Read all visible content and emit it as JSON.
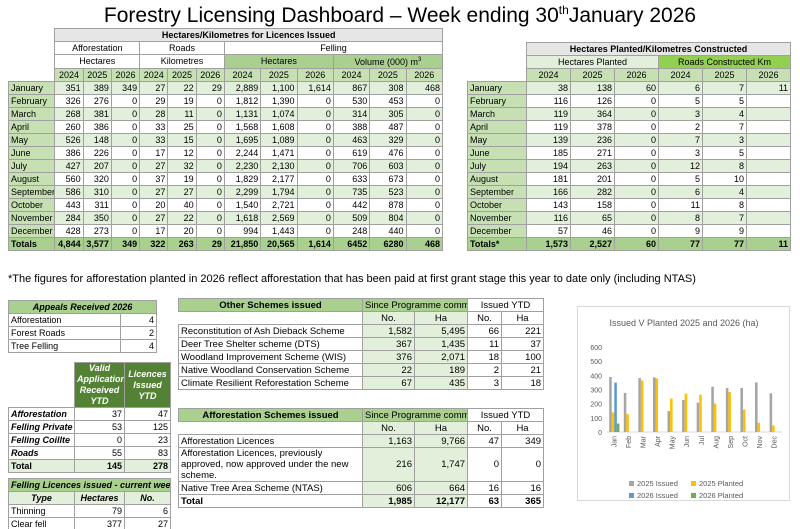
{
  "header": {
    "title": "Forestry Licensing Dashboard – Week ending 30",
    "title_sup": "th",
    "title_tail": "January 2026"
  },
  "licences": {
    "title": "Hectares/Kilometres for Licences Issued",
    "afforestation": "Afforestation",
    "roads": "Roads",
    "felling": "Felling",
    "hectares": "Hectares",
    "kilometres": "Kilometres",
    "volume": "Volume (000) m",
    "volume_sup": "3",
    "years": [
      "2024",
      "2025",
      "2026"
    ],
    "rows": [
      [
        "January",
        "351",
        "389",
        "349",
        "27",
        "22",
        "29",
        "2,889",
        "1,100",
        "1,614",
        "867",
        "308",
        "468"
      ],
      [
        "February",
        "326",
        "276",
        "0",
        "29",
        "19",
        "0",
        "1,812",
        "1,390",
        "0",
        "530",
        "453",
        "0"
      ],
      [
        "March",
        "268",
        "381",
        "0",
        "28",
        "11",
        "0",
        "1,131",
        "1,074",
        "0",
        "314",
        "305",
        "0"
      ],
      [
        "April",
        "260",
        "386",
        "0",
        "33",
        "25",
        "0",
        "1,568",
        "1,608",
        "0",
        "388",
        "487",
        "0"
      ],
      [
        "May",
        "526",
        "148",
        "0",
        "33",
        "15",
        "0",
        "1,695",
        "1,089",
        "0",
        "463",
        "329",
        "0"
      ],
      [
        "June",
        "386",
        "226",
        "0",
        "17",
        "12",
        "0",
        "2,244",
        "1,471",
        "0",
        "619",
        "476",
        "0"
      ],
      [
        "July",
        "427",
        "207",
        "0",
        "27",
        "32",
        "0",
        "2,230",
        "2,130",
        "0",
        "706",
        "603",
        "0"
      ],
      [
        "August",
        "560",
        "320",
        "0",
        "37",
        "19",
        "0",
        "1,829",
        "2,177",
        "0",
        "633",
        "673",
        "0"
      ],
      [
        "September",
        "586",
        "310",
        "0",
        "27",
        "27",
        "0",
        "2,299",
        "1,794",
        "0",
        "735",
        "523",
        "0"
      ],
      [
        "October",
        "443",
        "311",
        "0",
        "20",
        "40",
        "0",
        "1,540",
        "2,721",
        "0",
        "442",
        "878",
        "0"
      ],
      [
        "November",
        "284",
        "350",
        "0",
        "27",
        "22",
        "0",
        "1,618",
        "2,569",
        "0",
        "509",
        "804",
        "0"
      ],
      [
        "December",
        "428",
        "273",
        "0",
        "17",
        "20",
        "0",
        "994",
        "1,443",
        "0",
        "248",
        "440",
        "0"
      ],
      [
        "Totals",
        "4,844",
        "3,577",
        "349",
        "322",
        "263",
        "29",
        "21,850",
        "20,565",
        "1,614",
        "6452",
        "6280",
        "468"
      ]
    ]
  },
  "planted": {
    "title": "Hectares Planted/Kilometres Constructed",
    "hectares_planted": "Hectares Planted",
    "roads_constructed": "Roads Constructed Km",
    "years": [
      "2024",
      "2025",
      "2026"
    ],
    "rows": [
      [
        "January",
        "38",
        "138",
        "60",
        "6",
        "7",
        "11"
      ],
      [
        "February",
        "116",
        "126",
        "0",
        "5",
        "5",
        null
      ],
      [
        "March",
        "119",
        "364",
        "0",
        "3",
        "4",
        null
      ],
      [
        "April",
        "119",
        "378",
        "0",
        "2",
        "7",
        null
      ],
      [
        "May",
        "139",
        "236",
        "0",
        "7",
        "3",
        null
      ],
      [
        "June",
        "185",
        "271",
        "0",
        "3",
        "5",
        null
      ],
      [
        "July",
        "194",
        "263",
        "0",
        "12",
        "8",
        null
      ],
      [
        "August",
        "181",
        "201",
        "0",
        "5",
        "10",
        null
      ],
      [
        "September",
        "166",
        "282",
        "0",
        "6",
        "4",
        null
      ],
      [
        "October",
        "143",
        "158",
        "0",
        "11",
        "8",
        null
      ],
      [
        "November",
        "116",
        "65",
        "0",
        "8",
        "7",
        null
      ],
      [
        "December",
        "57",
        "46",
        "0",
        "9",
        "9",
        null
      ],
      [
        "Totals*",
        "1,573",
        "2,527",
        "60",
        "77",
        "77",
        "11"
      ]
    ]
  },
  "footnote": "*The figures for afforestation planted in 2026 reflect afforestation that has been paid at first grant stage this year to date only (including NTAS)",
  "appeals": {
    "title": "Appeals Received 2026",
    "rows": [
      [
        "Afforestation",
        "4"
      ],
      [
        "Forest Roads",
        "2"
      ],
      [
        "Tree Felling",
        "4"
      ]
    ]
  },
  "applications": {
    "columns": [
      "Valid Applications Received YTD",
      "Licences Issued YTD"
    ],
    "rows": [
      [
        "Afforestation",
        "37",
        "47"
      ],
      [
        "Felling Private",
        "53",
        "125"
      ],
      [
        "Felling Coillte",
        "0",
        "23"
      ],
      [
        "Roads",
        "55",
        "83"
      ],
      [
        "Total",
        "145",
        "278"
      ]
    ]
  },
  "current_week": {
    "title": "Felling Licences issued - current week",
    "columns": [
      "Type",
      "Hectares",
      "No."
    ],
    "rows": [
      [
        "Thinning",
        "79",
        "6"
      ],
      [
        "Clear fell",
        "377",
        "27"
      ]
    ]
  },
  "other_schemes": {
    "title": "Other Schemes issued",
    "since": "Since Programme commenced",
    "ytd": "Issued YTD",
    "no": "No.",
    "ha": "Ha",
    "rows": [
      [
        "Reconstitution of Ash Dieback Scheme",
        "1,582",
        "5,495",
        "66",
        "221"
      ],
      [
        "Deer Tree Shelter scheme (DTS)",
        "367",
        "1,435",
        "11",
        "37"
      ],
      [
        "Woodland Improvement Scheme (WIS)",
        "376",
        "2,071",
        "18",
        "100"
      ],
      [
        "Native Woodland Conservation Scheme",
        "22",
        "189",
        "2",
        "21"
      ],
      [
        "Climate Resilient Reforestation Scheme",
        "67",
        "435",
        "3",
        "18"
      ]
    ]
  },
  "afforestation_schemes": {
    "title": "Afforestation Schemes issued",
    "since": "Since Programme commenced",
    "ytd": "Issued YTD",
    "no": "No.",
    "ha": "Ha",
    "rows": [
      [
        "Afforestation Licences",
        "1,163",
        "9,766",
        "47",
        "349"
      ],
      [
        "Afforestation Licences, previously approved, now approved under the new scheme.",
        "216",
        "1,747",
        "0",
        "0"
      ],
      [
        "Native Tree Area Scheme (NTAS)",
        "606",
        "664",
        "16",
        "16"
      ],
      [
        "Total",
        "1,985",
        "12,177",
        "63",
        "365"
      ]
    ]
  },
  "chart_data": {
    "type": "bar",
    "title": "Issued V Planted 2025 and 2026 (ha)",
    "categories": [
      "Jan",
      "Feb",
      "Mar",
      "Apr",
      "May",
      "Jun",
      "Jul",
      "Aug",
      "Sep",
      "Oct",
      "Nov",
      "Dec"
    ],
    "series": [
      {
        "name": "2025 Issued",
        "color": "#a5a5a5",
        "values": [
          389,
          276,
          381,
          386,
          148,
          226,
          207,
          320,
          310,
          311,
          350,
          273
        ]
      },
      {
        "name": "2025 Planted",
        "color": "#ffc000",
        "values": [
          138,
          126,
          364,
          378,
          236,
          271,
          263,
          201,
          282,
          158,
          65,
          46
        ]
      },
      {
        "name": "2026 Issued",
        "color": "#5b9bd5",
        "values": [
          349,
          0,
          0,
          0,
          0,
          0,
          0,
          0,
          0,
          0,
          0,
          0
        ]
      },
      {
        "name": "2026 Planted",
        "color": "#70ad47",
        "values": [
          60,
          0,
          0,
          0,
          0,
          0,
          0,
          0,
          0,
          0,
          0,
          0
        ]
      }
    ],
    "ylim": [
      0,
      600
    ],
    "yticks": [
      0,
      100,
      200,
      300,
      400,
      500,
      600
    ],
    "grid": false
  }
}
